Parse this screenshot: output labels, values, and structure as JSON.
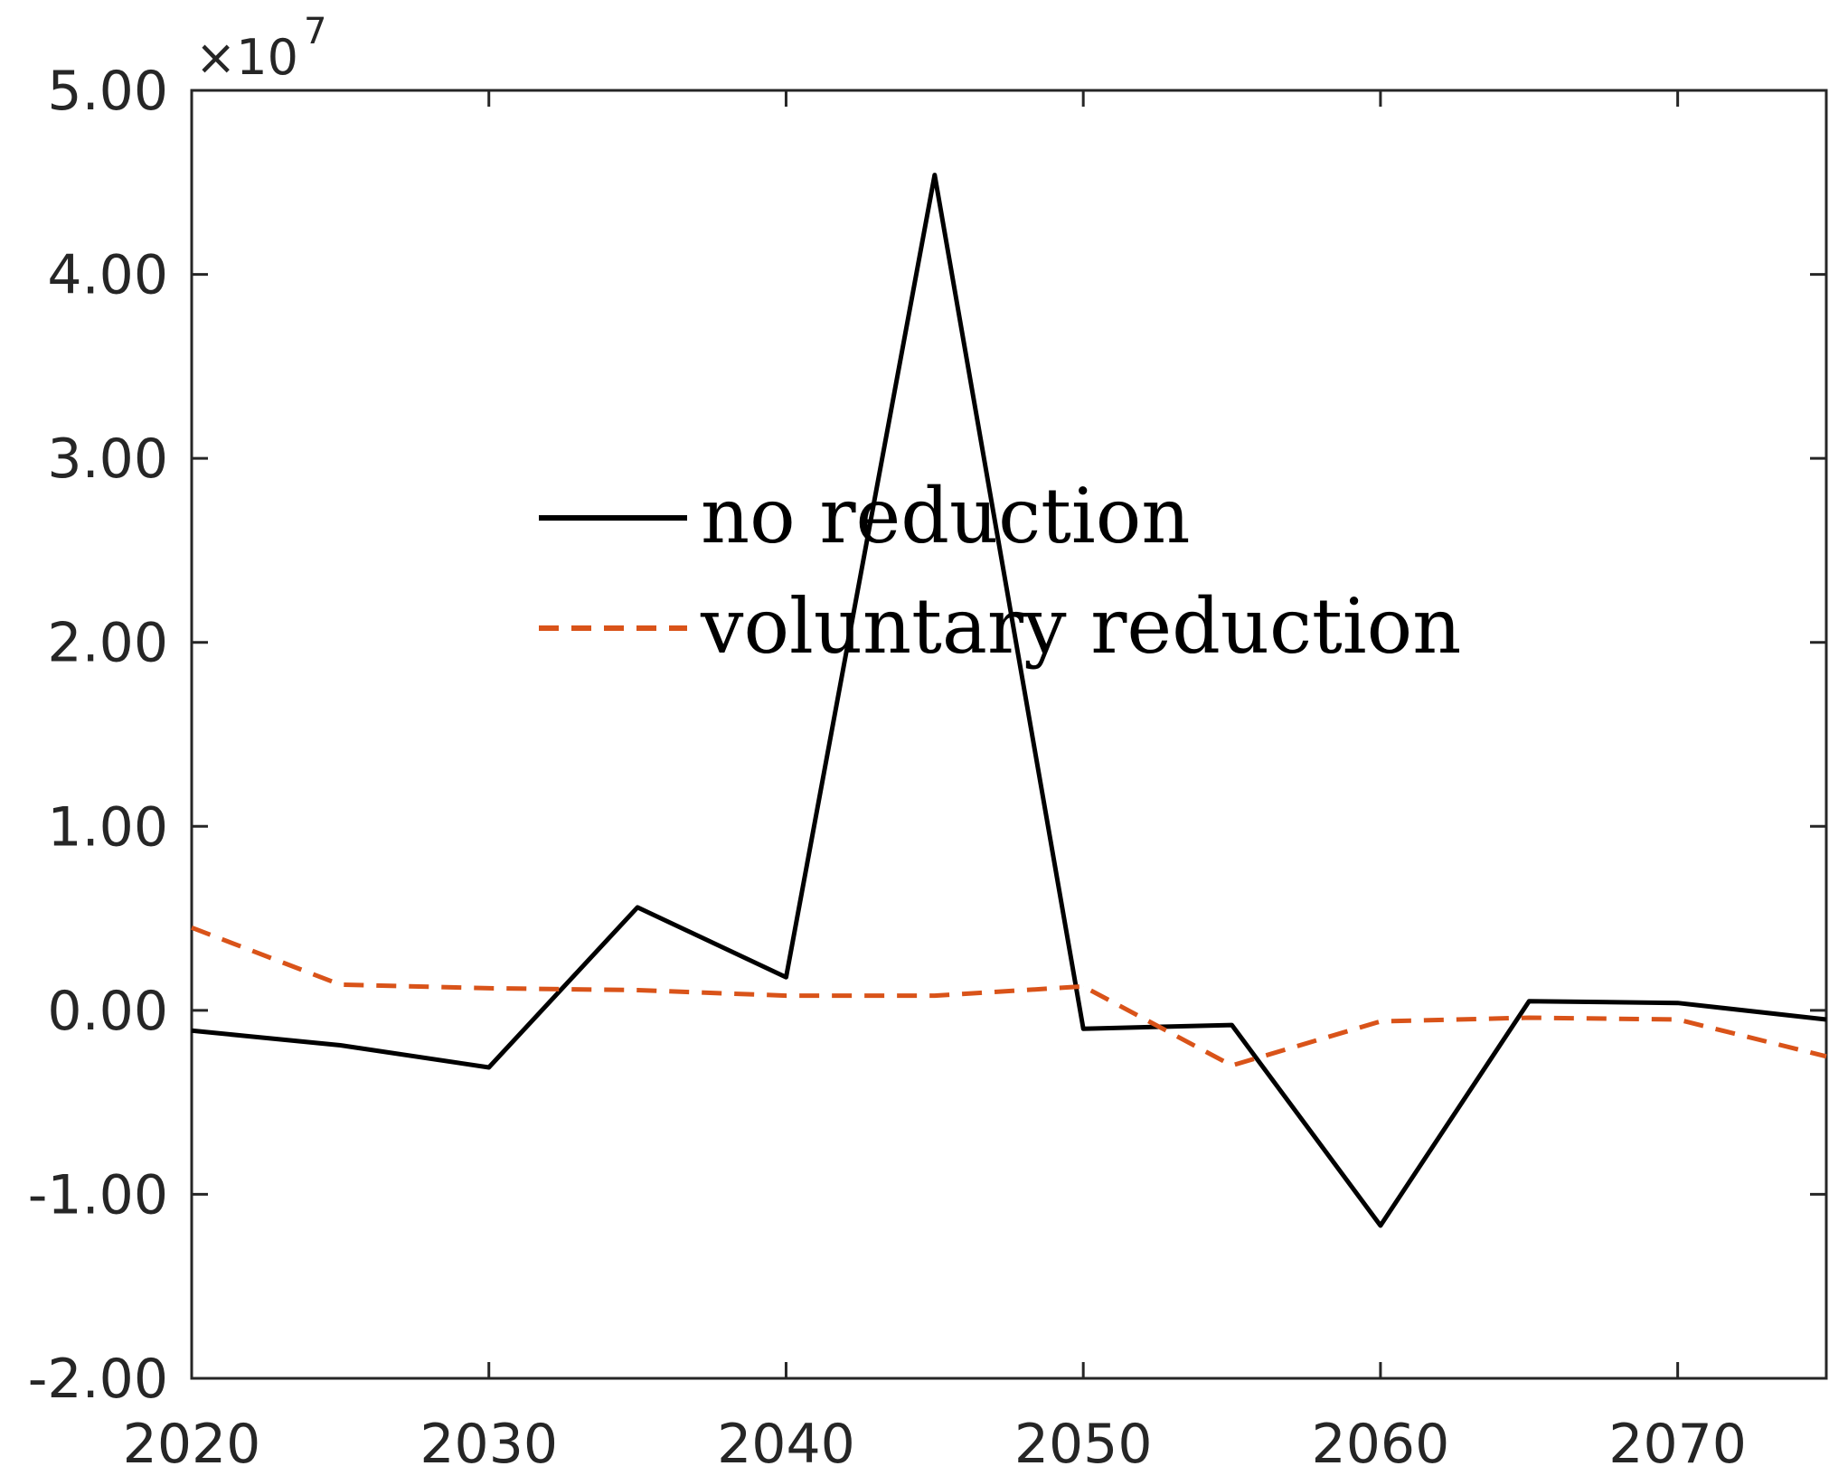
{
  "chart_data": {
    "type": "line",
    "title": "",
    "xlabel": "",
    "ylabel": "",
    "x": [
      2020,
      2025,
      2030,
      2035,
      2040,
      2045,
      2050,
      2055,
      2060,
      2065,
      2070,
      2075
    ],
    "xlim": [
      2020,
      2075
    ],
    "ylim": [
      -20000000,
      50000000
    ],
    "y_scale_label": "×10",
    "y_scale_exponent": "7",
    "x_ticks": [
      {
        "value": 2020,
        "label": "2020"
      },
      {
        "value": 2030,
        "label": "2030"
      },
      {
        "value": 2040,
        "label": "2040"
      },
      {
        "value": 2050,
        "label": "2050"
      },
      {
        "value": 2060,
        "label": "2060"
      },
      {
        "value": 2070,
        "label": "2070"
      }
    ],
    "y_ticks": [
      {
        "value": 50000000,
        "label": "5.00"
      },
      {
        "value": 40000000,
        "label": "4.00"
      },
      {
        "value": 30000000,
        "label": "3.00"
      },
      {
        "value": 20000000,
        "label": "2.00"
      },
      {
        "value": 10000000,
        "label": "1.00"
      },
      {
        "value": 0,
        "label": "0.00"
      },
      {
        "value": -10000000,
        "label": "-1.00"
      },
      {
        "value": -20000000,
        "label": "-2.00"
      }
    ],
    "grid": false,
    "legend_position": "center",
    "series": [
      {
        "name": "no reduction",
        "color": "#000000",
        "dash": "solid",
        "values": [
          -1100000,
          -1900000,
          -3100000,
          5600000,
          1800000,
          45400000,
          -1000000,
          -800000,
          -11700000,
          500000,
          400000,
          -500000
        ]
      },
      {
        "name": "voluntary reduction",
        "color": "#D95319",
        "dash": "dashed",
        "values": [
          4500000,
          1400000,
          1200000,
          1100000,
          800000,
          800000,
          1300000,
          -3000000,
          -600000,
          -400000,
          -500000,
          -2500000
        ]
      }
    ]
  }
}
